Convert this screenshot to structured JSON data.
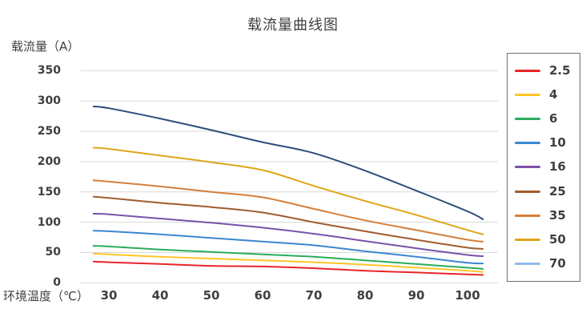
{
  "title": "载流量曲线图",
  "y_axis_title": "载流量（A）",
  "x_axis_title": "环境温度（℃）",
  "colors": {
    "background": "#FFFFFF",
    "grid": "#D9D9D9",
    "text": "#404040",
    "legend_border": "#6E6E6E"
  },
  "legend": {
    "position": "right",
    "items": [
      "2.5",
      "4",
      "6",
      "10",
      "16",
      "25",
      "35",
      "50",
      "70"
    ]
  },
  "chart_data": {
    "type": "line",
    "title": "载流量曲线图",
    "xlabel": "环境温度（℃）",
    "ylabel": "载流量（A）",
    "x_ticks": [
      30,
      40,
      50,
      60,
      70,
      80,
      90,
      100
    ],
    "y_ticks": [
      0,
      50,
      100,
      150,
      200,
      250,
      300,
      350
    ],
    "ylim": [
      0,
      350
    ],
    "xlim": [
      27,
      103
    ],
    "grid": true,
    "legend_position": "right",
    "x": [
      27,
      30,
      40,
      50,
      60,
      70,
      80,
      90,
      100,
      103
    ],
    "series": [
      {
        "name": "2.5",
        "color": "#E8252A",
        "values": [
          35,
          34,
          31,
          28,
          27,
          24,
          20,
          17,
          14,
          13
        ]
      },
      {
        "name": "4",
        "color": "#FFC528",
        "values": [
          48,
          47,
          43,
          40,
          37,
          34,
          30,
          25,
          20,
          18
        ]
      },
      {
        "name": "6",
        "color": "#2BAC5C",
        "values": [
          61,
          60,
          55,
          51,
          47,
          43,
          37,
          31,
          25,
          23
        ]
      },
      {
        "name": "10",
        "color": "#3B86D0",
        "values": [
          86,
          85,
          80,
          74,
          68,
          62,
          52,
          43,
          33,
          32
        ]
      },
      {
        "name": "16",
        "color": "#7A52A8",
        "values": [
          114,
          113,
          106,
          99,
          91,
          81,
          69,
          57,
          46,
          44
        ]
      },
      {
        "name": "25",
        "color": "#A05C2E",
        "values": [
          142,
          140,
          132,
          125,
          116,
          100,
          85,
          71,
          58,
          56
        ]
      },
      {
        "name": "35",
        "color": "#D57F39",
        "values": [
          169,
          167,
          159,
          150,
          141,
          122,
          103,
          87,
          71,
          68
        ]
      },
      {
        "name": "50",
        "color": "#DFA518",
        "values": [
          223,
          221,
          210,
          199,
          186,
          160,
          135,
          112,
          87,
          80
        ]
      },
      {
        "name": "70",
        "color": "#2E4D7B",
        "legend_color": "#8FBCE6",
        "values": [
          291,
          288,
          271,
          252,
          232,
          214,
          185,
          152,
          118,
          105
        ]
      }
    ]
  }
}
